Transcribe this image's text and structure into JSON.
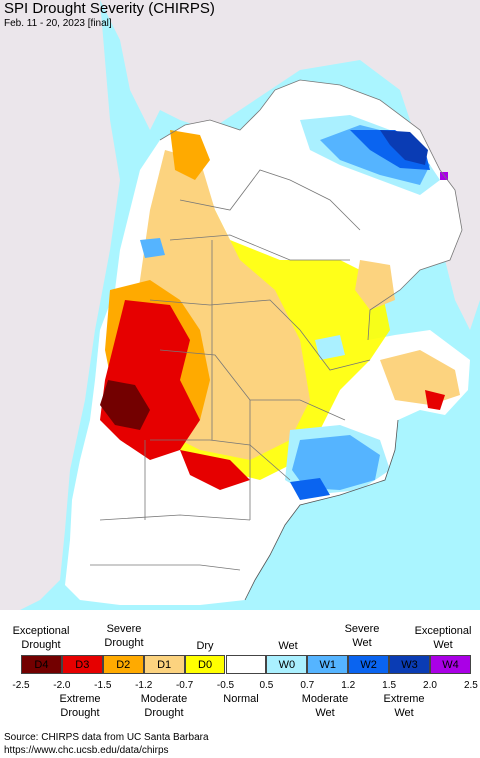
{
  "header": {
    "title": "SPI Drought Severity (CHIRPS)",
    "subtitle": "Feb. 11 - 20, 2023 [final]"
  },
  "legend": {
    "top_labels": [
      "Exceptional\nDrought",
      "Severe\nDrought",
      "Dry",
      "Wet",
      "Severe\nWet",
      "Exceptional\nWet"
    ],
    "categories": [
      {
        "code": "D4",
        "color": "#730000"
      },
      {
        "code": "D3",
        "color": "#e60000"
      },
      {
        "code": "D2",
        "color": "#ffaa00"
      },
      {
        "code": "D1",
        "color": "#fcd37f"
      },
      {
        "code": "D0",
        "color": "#ffff00"
      },
      {
        "code": "",
        "color": "#ffffff"
      },
      {
        "code": "W0",
        "color": "#aaf0ff"
      },
      {
        "code": "W1",
        "color": "#55b4ff"
      },
      {
        "code": "W2",
        "color": "#0a64f0"
      },
      {
        "code": "W3",
        "color": "#0a3cb4"
      },
      {
        "code": "W4",
        "color": "#aa00e6"
      }
    ],
    "ticks": [
      "-2.5",
      "-2.0",
      "-1.5",
      "-1.2",
      "-0.7",
      "-0.5",
      "0.5",
      "0.7",
      "1.2",
      "1.5",
      "2.0",
      "2.5"
    ],
    "bottom_labels": [
      "Extreme\nDrought",
      "Moderate\nDrought",
      "Normal",
      "Moderate\nWet",
      "Extreme\nWet"
    ]
  },
  "source": {
    "line1": "Source: CHIRPS data from UC Santa Barbara",
    "line2": "https://www.chc.ucsb.edu/data/chirps"
  },
  "colors": {
    "ocean": "#aaf5ff",
    "outside_land": "#ebe6eb",
    "border": "#777777"
  }
}
